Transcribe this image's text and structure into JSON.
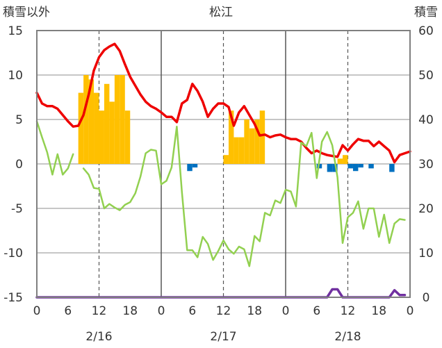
{
  "chart_data": {
    "type": "line",
    "title": "松江",
    "y_left_label": "積雪以外",
    "y_right_label": "積雪",
    "y_left_range": [
      -15,
      15
    ],
    "y_left_ticks": [
      "15",
      "10",
      "5",
      "0",
      "-5",
      "-10",
      "-15"
    ],
    "y_right_range": [
      0,
      60
    ],
    "y_right_ticks": [
      "60",
      "50",
      "40",
      "30",
      "20",
      "10",
      "0"
    ],
    "x_range_hours": [
      0,
      72
    ],
    "x_tick_labels": [
      "0",
      "6",
      "12",
      "18",
      "0",
      "6",
      "12",
      "18",
      "0",
      "6",
      "12",
      "18",
      "0"
    ],
    "date_labels": [
      "2/16",
      "2/17",
      "2/18"
    ],
    "grid": true,
    "colors": {
      "temperature": "#ee0000",
      "green_series": "#92d050",
      "snow_depth": "#7030a0",
      "precip_positive": "#ffc000",
      "precip_negative": "#0070c0",
      "frame": "#7f7f7f"
    },
    "series": [
      {
        "key": "temperature",
        "axis": "left",
        "points": [
          [
            0,
            8
          ],
          [
            1,
            6.8
          ],
          [
            2,
            6.5
          ],
          [
            3,
            6.5
          ],
          [
            4,
            6.2
          ],
          [
            5,
            5.5
          ],
          [
            6,
            4.8
          ],
          [
            7,
            4.2
          ],
          [
            8,
            4.3
          ],
          [
            9,
            5.5
          ],
          [
            10,
            7.8
          ],
          [
            11,
            10.5
          ],
          [
            12,
            12
          ],
          [
            13,
            12.8
          ],
          [
            14,
            13.2
          ],
          [
            15,
            13.5
          ],
          [
            16,
            12.7
          ],
          [
            17,
            11.2
          ],
          [
            18,
            9.8
          ],
          [
            19,
            8.8
          ],
          [
            20,
            7.8
          ],
          [
            21,
            7
          ],
          [
            22,
            6.5
          ],
          [
            23,
            6.2
          ],
          [
            24,
            5.8
          ],
          [
            25,
            5.3
          ],
          [
            26,
            5.3
          ],
          [
            27,
            4.7
          ],
          [
            28,
            6.8
          ],
          [
            29,
            7.2
          ],
          [
            30,
            9
          ],
          [
            31,
            8.2
          ],
          [
            32,
            7
          ],
          [
            33,
            5.3
          ],
          [
            34,
            6.2
          ],
          [
            35,
            6.8
          ],
          [
            36,
            6.8
          ],
          [
            37,
            6.4
          ],
          [
            38,
            4.3
          ],
          [
            39,
            5.8
          ],
          [
            40,
            6.5
          ],
          [
            41,
            5.5
          ],
          [
            42,
            4.5
          ],
          [
            43,
            3.2
          ],
          [
            44,
            3.3
          ],
          [
            45,
            3
          ],
          [
            46,
            3.2
          ],
          [
            47,
            3.3
          ],
          [
            48,
            3
          ],
          [
            49,
            2.8
          ],
          [
            50,
            2.8
          ],
          [
            51,
            2.5
          ],
          [
            52,
            1.8
          ],
          [
            53,
            1.2
          ],
          [
            54,
            1.5
          ],
          [
            55,
            1.2
          ],
          [
            56,
            1
          ],
          [
            57,
            0.9
          ],
          [
            58,
            0.8
          ],
          [
            59,
            2.1
          ],
          [
            60,
            1.5
          ],
          [
            61,
            2.2
          ],
          [
            62,
            2.8
          ],
          [
            63,
            2.6
          ],
          [
            64,
            2.6
          ],
          [
            65,
            2
          ],
          [
            66,
            2.5
          ],
          [
            67,
            2
          ],
          [
            68,
            1.5
          ],
          [
            69,
            0.2
          ],
          [
            70,
            1
          ],
          [
            71,
            1.2
          ],
          [
            72,
            1.4
          ]
        ]
      },
      {
        "key": "green_series",
        "axis": "left",
        "segments": [
          [
            [
              0,
              4.8
            ],
            [
              1,
              3
            ],
            [
              2,
              1.3
            ],
            [
              3,
              -1.2
            ],
            [
              4,
              1.1
            ],
            [
              5,
              -1.2
            ],
            [
              6,
              -0.5
            ],
            [
              7,
              1.1
            ]
          ],
          [
            [
              9,
              -0.5
            ],
            [
              10,
              -1.2
            ],
            [
              11,
              -2.7
            ],
            [
              12,
              -2.8
            ],
            [
              13,
              -5
            ],
            [
              14,
              -4.5
            ],
            [
              15,
              -4.9
            ],
            [
              16,
              -5.2
            ],
            [
              17,
              -4.6
            ],
            [
              18,
              -4.3
            ],
            [
              19,
              -3.3
            ],
            [
              20,
              -1.4
            ],
            [
              21,
              1.2
            ],
            [
              22,
              1.6
            ],
            [
              23,
              1.5
            ],
            [
              24,
              -2.3
            ],
            [
              25,
              -1.9
            ],
            [
              26,
              -0.4
            ],
            [
              27,
              4.2
            ],
            [
              28,
              -3.2
            ],
            [
              29,
              -9.7
            ],
            [
              30,
              -9.7
            ],
            [
              31,
              -10.5
            ],
            [
              32,
              -8.2
            ],
            [
              33,
              -9
            ],
            [
              34,
              -10.8
            ],
            [
              35,
              -9.8
            ],
            [
              36,
              -8.6
            ],
            [
              37,
              -9.6
            ],
            [
              38,
              -10.1
            ],
            [
              39,
              -9.3
            ],
            [
              40,
              -9.6
            ],
            [
              41,
              -11.5
            ],
            [
              42,
              -8.1
            ],
            [
              43,
              -8.7
            ],
            [
              44,
              -5.5
            ],
            [
              45,
              -5.8
            ],
            [
              46,
              -4.1
            ],
            [
              47,
              -4.4
            ],
            [
              48,
              -2.9
            ],
            [
              49,
              -3.1
            ],
            [
              50,
              -4.8
            ],
            [
              51,
              2.4
            ],
            [
              52,
              2
            ],
            [
              53,
              3.5
            ],
            [
              54,
              -1.6
            ],
            [
              55,
              2.5
            ],
            [
              56,
              3.6
            ],
            [
              57,
              2.1
            ],
            [
              58,
              -1.5
            ],
            [
              59,
              -8.9
            ],
            [
              60,
              -6
            ],
            [
              61,
              -5.5
            ],
            [
              62,
              -4.2
            ],
            [
              63,
              -7.3
            ],
            [
              64,
              -5
            ],
            [
              65,
              -5
            ],
            [
              66,
              -8.2
            ],
            [
              67,
              -5.7
            ],
            [
              68,
              -8.9
            ],
            [
              69,
              -6.7
            ],
            [
              70,
              -6.2
            ],
            [
              71,
              -6.3
            ]
          ]
        ]
      },
      {
        "key": "snow_depth",
        "axis": "right",
        "points": [
          [
            0,
            0
          ],
          [
            56,
            0
          ],
          [
            57,
            1.8
          ],
          [
            58,
            1.8
          ],
          [
            59,
            0
          ],
          [
            68,
            0
          ],
          [
            69,
            1.6
          ],
          [
            70,
            0.5
          ],
          [
            71,
            0.5
          ]
        ]
      }
    ],
    "bars": {
      "axis": "left",
      "values": [
        [
          8,
          8
        ],
        [
          9,
          10
        ],
        [
          10,
          9.5
        ],
        [
          11,
          8
        ],
        [
          12,
          6
        ],
        [
          13,
          9
        ],
        [
          14,
          7
        ],
        [
          15,
          10
        ],
        [
          16,
          10
        ],
        [
          17,
          6
        ],
        [
          29,
          -0.8
        ],
        [
          30,
          -0.4
        ],
        [
          36,
          1
        ],
        [
          37,
          6
        ],
        [
          38,
          3
        ],
        [
          39,
          3
        ],
        [
          40,
          5
        ],
        [
          41,
          4
        ],
        [
          42,
          5
        ],
        [
          43,
          6
        ],
        [
          54,
          -0.5
        ],
        [
          56,
          -0.9
        ],
        [
          57,
          -0.9
        ],
        [
          58,
          0.6
        ],
        [
          59,
          1
        ],
        [
          60,
          -0.5
        ],
        [
          61,
          -0.8
        ],
        [
          62,
          -0.4
        ],
        [
          64,
          -0.5
        ],
        [
          68,
          -0.9
        ]
      ]
    }
  }
}
